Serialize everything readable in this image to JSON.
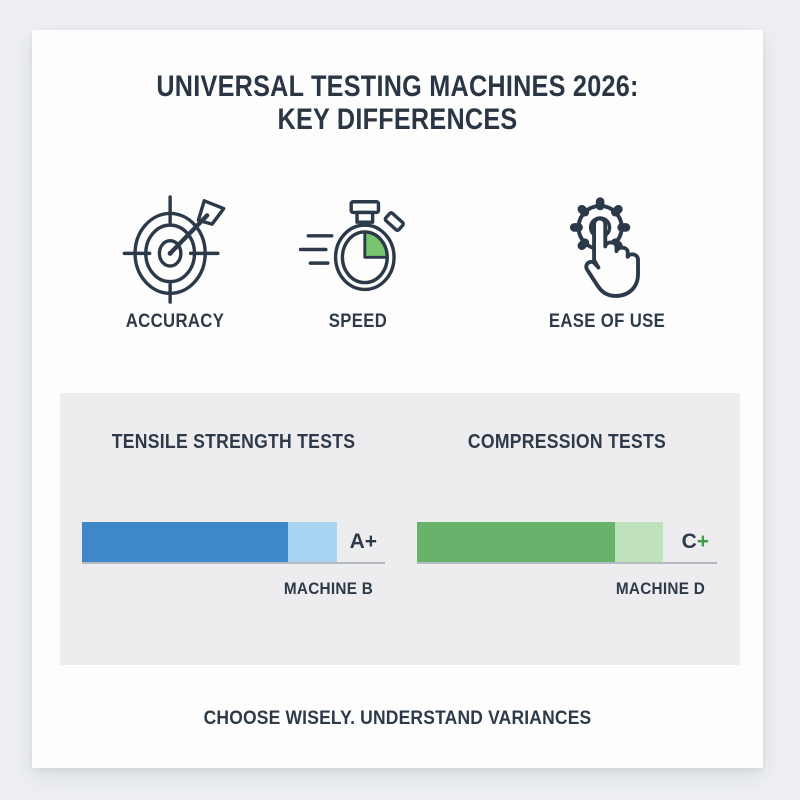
{
  "card": {
    "title_line1": "UNIVERSAL TESTING MACHINES 2026:",
    "title_line2": "KEY DIFFERENCES",
    "footer_note": "CHOOSE WISELY. UNDERSTAND VARIANCES"
  },
  "features": [
    {
      "label": "ACCURACY",
      "icon": "target-arrow-icon"
    },
    {
      "label": "SPEED",
      "icon": "stopwatch-icon"
    },
    {
      "label": "EASE OF USE",
      "icon": "gear-tap-icon"
    }
  ],
  "colors": {
    "page_bg": "#edeff3",
    "card_bg": "#fdfdfe",
    "panel_bg": "#ededf0",
    "text_dark": "#2c3949",
    "baseline_gray": "#b4bac1",
    "stopwatch_green": "#78c46f"
  },
  "chart_data": [
    {
      "type": "bar",
      "orientation": "horizontal",
      "stacked": true,
      "title": "TENSILE STRENGTH TESTS",
      "categories": [
        "MACHINE B"
      ],
      "series": [
        {
          "name": "primary-score",
          "values": [
            68
          ],
          "color": "#3e87c9"
        },
        {
          "name": "secondary-score",
          "values": [
            16
          ],
          "color": "#a9d5f3"
        }
      ],
      "xlim": [
        0,
        100
      ],
      "grade_letter": "A",
      "grade_plus": "+",
      "grade_plus_color": "#2e3a49",
      "machine_label": "MACHINE B"
    },
    {
      "type": "bar",
      "orientation": "horizontal",
      "stacked": true,
      "title": "COMPRESSION TESTS",
      "categories": [
        "MACHINE D"
      ],
      "series": [
        {
          "name": "primary-score",
          "values": [
            66
          ],
          "color": "#68b36b"
        },
        {
          "name": "secondary-score",
          "values": [
            16
          ],
          "color": "#bfe2bc"
        }
      ],
      "xlim": [
        0,
        100
      ],
      "grade_letter": "C",
      "grade_plus": "+",
      "grade_plus_color": "#3f9a48",
      "machine_label": "MACHINE D"
    }
  ]
}
